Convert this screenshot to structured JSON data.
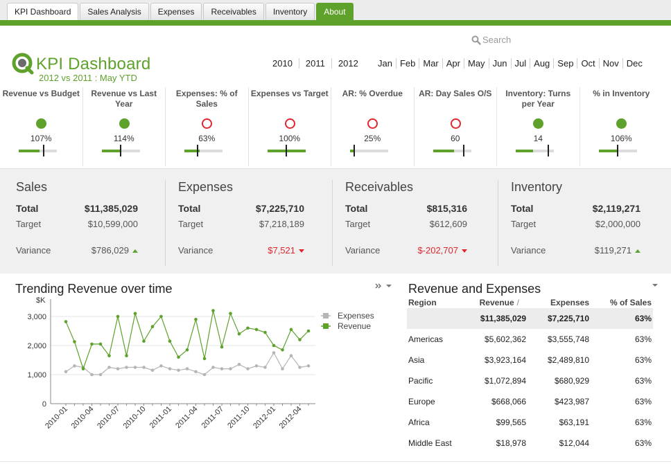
{
  "tabs": [
    {
      "label": "KPI Dashboard",
      "state": "active"
    },
    {
      "label": "Sales Analysis",
      "state": ""
    },
    {
      "label": "Expenses",
      "state": ""
    },
    {
      "label": "Receivables",
      "state": ""
    },
    {
      "label": "Inventory",
      "state": ""
    },
    {
      "label": "About",
      "state": "about"
    }
  ],
  "search": {
    "label": "Search",
    "icon": "search-icon"
  },
  "header": {
    "title": "KPI Dashboard",
    "subtitle": "2012 vs 2011 : May YTD",
    "logo": "qlik-logo"
  },
  "years": [
    "2010",
    "2011",
    "2012"
  ],
  "months": [
    "Jan",
    "Feb",
    "Mar",
    "Apr",
    "May",
    "Jun",
    "Jul",
    "Aug",
    "Sep",
    "Oct",
    "Nov",
    "Dec"
  ],
  "colors": {
    "accent": "#5ea12b",
    "negative": "#e0262e",
    "expenses_line": "#b5b5b5"
  },
  "kpis": [
    {
      "label": "Revenue vs Budget",
      "value": "107%",
      "status": "good",
      "fill": 0.55,
      "target": 0.65
    },
    {
      "label": "Revenue vs Last Year",
      "value": "114%",
      "status": "good",
      "fill": 0.5,
      "target": 0.5
    },
    {
      "label": "Expenses: % of Sales",
      "value": "63%",
      "status": "bad",
      "fill": 0.4,
      "target": 0.35
    },
    {
      "label": "Expenses vs Target",
      "value": "100%",
      "status": "bad",
      "fill": 1.0,
      "target": 0.5
    },
    {
      "label": "AR: % Overdue",
      "value": "25%",
      "status": "bad",
      "fill": 0.1,
      "target": 0.1
    },
    {
      "label": "AR: Day Sales O/S",
      "value": "60",
      "status": "bad",
      "fill": 0.55,
      "target": 0.8
    },
    {
      "label": "Inventory: Turns per Year",
      "value": "14",
      "status": "good",
      "fill": 0.45,
      "target": 0.85
    },
    {
      "label": "% in Inventory",
      "value": "106%",
      "status": "good",
      "fill": 0.5,
      "target": 0.5
    }
  ],
  "summary": [
    {
      "title": "Sales",
      "total_label": "Total",
      "total": "$11,385,029",
      "target_label": "Target",
      "target": "$10,599,000",
      "variance_label": "Variance",
      "variance": "$786,029",
      "direction": "up"
    },
    {
      "title": "Expenses",
      "total_label": "Total",
      "total": "$7,225,710",
      "target_label": "Target",
      "target": "$7,218,189",
      "variance_label": "Variance",
      "variance": "$7,521",
      "direction": "down"
    },
    {
      "title": "Receivables",
      "total_label": "Total",
      "total": "$815,316",
      "target_label": "Target",
      "target": "$612,609",
      "variance_label": "Variance",
      "variance": "$-202,707",
      "direction": "down"
    },
    {
      "title": "Inventory",
      "total_label": "Total",
      "total": "$2,119,271",
      "target_label": "Target",
      "target": "$2,000,000",
      "variance_label": "Variance",
      "variance": "$119,271",
      "direction": "up"
    }
  ],
  "chart_data": {
    "type": "line",
    "title": "Trending Revenue over time",
    "ylabel": "$K",
    "xlabel": "",
    "ylim": [
      0,
      3500
    ],
    "yticks": [
      0,
      1000,
      2000,
      3000
    ],
    "ytick_labels": [
      "0",
      "1,000",
      "2,000",
      "3,000"
    ],
    "x": [
      "2010-01",
      "2010-02",
      "2010-03",
      "2010-04",
      "2010-05",
      "2010-06",
      "2010-07",
      "2010-08",
      "2010-09",
      "2010-10",
      "2010-11",
      "2010-12",
      "2011-01",
      "2011-02",
      "2011-03",
      "2011-04",
      "2011-05",
      "2011-06",
      "2011-07",
      "2011-08",
      "2011-09",
      "2011-10",
      "2011-11",
      "2011-12",
      "2012-01",
      "2012-02",
      "2012-03",
      "2012-04",
      "2012-05"
    ],
    "xtick_labels": [
      "2010-01",
      "2010-04",
      "2010-07",
      "2010-10",
      "2011-01",
      "2011-04",
      "2011-07",
      "2011-10",
      "2012-01",
      "2012-04"
    ],
    "xtick_indices": [
      0,
      3,
      6,
      9,
      12,
      15,
      18,
      21,
      24,
      27
    ],
    "grid": true,
    "legend": "top-right",
    "series": [
      {
        "name": "Expenses",
        "color": "#b5b5b5",
        "values": [
          1100,
          1300,
          1250,
          1000,
          1000,
          1250,
          1200,
          1250,
          1250,
          1250,
          1150,
          1300,
          1200,
          1150,
          1200,
          1100,
          1000,
          1250,
          1200,
          1200,
          1350,
          1200,
          1300,
          1250,
          1750,
          1200,
          1650,
          1250,
          1300
        ]
      },
      {
        "name": "Revenue",
        "color": "#5ea12b",
        "values": [
          2820,
          2130,
          1200,
          2050,
          2050,
          1650,
          3000,
          1650,
          3100,
          2150,
          2650,
          3000,
          2150,
          1600,
          1850,
          2900,
          1550,
          3200,
          1950,
          3100,
          2400,
          2600,
          2550,
          2450,
          2000,
          1850,
          2550,
          2200,
          2500
        ]
      }
    ]
  },
  "chart_tools": {
    "icon": "expand-icon"
  },
  "table": {
    "title": "Revenue and Expenses",
    "columns": [
      "Region",
      "Revenue",
      "Expenses",
      "% of Sales"
    ],
    "sort_indicator": "/",
    "total": [
      "",
      "$11,385,029",
      "$7,225,710",
      "63%"
    ],
    "rows": [
      [
        "Americas",
        "$5,602,362",
        "$3,555,748",
        "63%"
      ],
      [
        "Asia",
        "$3,923,164",
        "$2,489,810",
        "63%"
      ],
      [
        "Pacific",
        "$1,072,894",
        "$680,929",
        "63%"
      ],
      [
        "Europe",
        "$668,066",
        "$423,987",
        "63%"
      ],
      [
        "Africa",
        "$99,565",
        "$63,191",
        "63%"
      ],
      [
        "Middle East",
        "$18,978",
        "$12,044",
        "63%"
      ]
    ]
  }
}
